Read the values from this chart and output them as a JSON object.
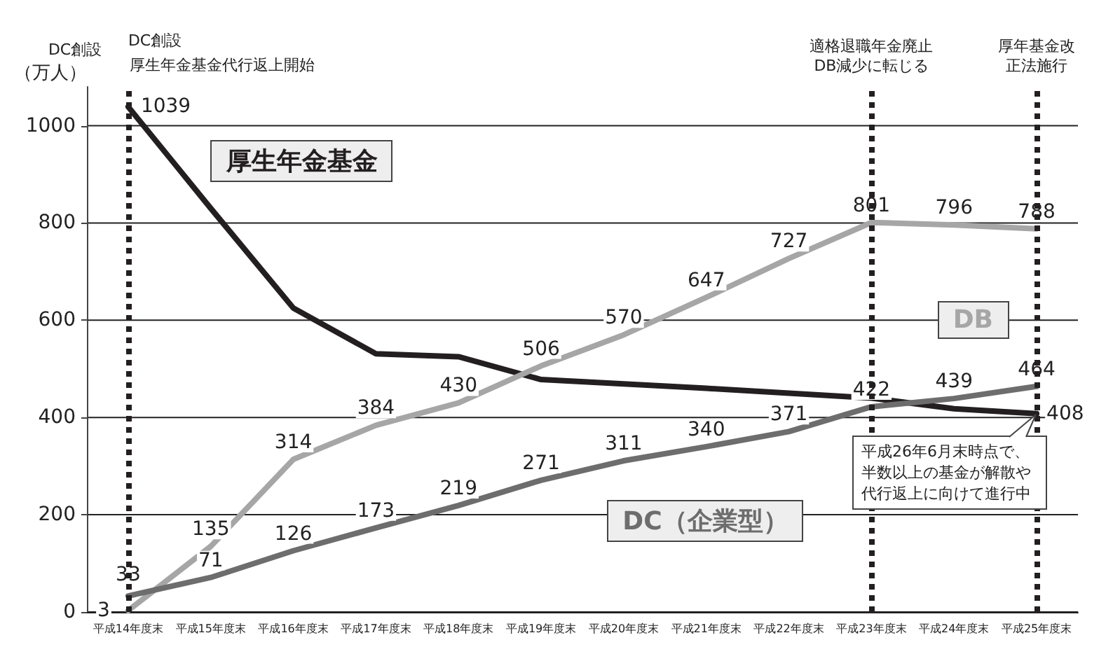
{
  "chart_data": {
    "type": "line",
    "ylabel": "（万人）",
    "categories": [
      "平成14年度末",
      "平成15年度末",
      "平成16年度末",
      "平成17年度末",
      "平成18年度末",
      "平成19年度末",
      "平成20年度末",
      "平成21年度末",
      "平成22年度末",
      "平成23年度末",
      "平成24年度末",
      "平成25年度末"
    ],
    "series": [
      {
        "name": "厚生年金基金",
        "color": "#231f20",
        "values": [
          1039,
          830,
          625,
          531,
          525,
          478,
          469,
          460,
          450,
          440,
          418,
          408
        ],
        "value_labels": [
          "1039",
          null,
          null,
          null,
          null,
          null,
          null,
          null,
          null,
          null,
          null,
          "408"
        ]
      },
      {
        "name": "DB",
        "color": "#a6a6a6",
        "values": [
          3,
          135,
          314,
          384,
          430,
          506,
          570,
          647,
          727,
          801,
          796,
          788
        ],
        "value_labels": [
          "3",
          "135",
          "314",
          "384",
          "430",
          "506",
          "570",
          "647",
          "727",
          "801",
          "796",
          "788"
        ]
      },
      {
        "name": "DC（企業型）",
        "color": "#6d6d6d",
        "values": [
          33,
          71,
          126,
          173,
          219,
          271,
          311,
          340,
          371,
          422,
          439,
          464
        ],
        "value_labels": [
          "33",
          "71",
          "126",
          "173",
          "219",
          "271",
          "311",
          "340",
          "371",
          "422",
          "439",
          "464"
        ]
      }
    ],
    "ylim": [
      0,
      1080
    ],
    "yticks": [
      0,
      200,
      400,
      600,
      800,
      1000
    ],
    "grid": "y",
    "legend": false,
    "marker": "none",
    "line_style": "solid",
    "ref_lines": [
      {
        "axis": "x",
        "value": "平成14年度末",
        "label": "DC創設",
        "color": "#231f20",
        "line_style": "dotted"
      },
      {
        "axis": "x",
        "value": "平成23年度末",
        "label": "適格退職年金廃止DB減少に転じる",
        "color": "#231f20",
        "line_style": "dotted"
      },
      {
        "axis": "x",
        "value": "平成25年度末",
        "label": "厚年基金改正法施行",
        "color": "#231f20",
        "line_style": "dotted"
      }
    ],
    "annotations": [
      "DC創設",
      "厚生年金基金代行返上開始",
      {
        "text": "平成26年6月末時点で、半数以上の基金が解散や代行返上に向けて進行中",
        "x": "平成25年度末",
        "y": 408
      }
    ]
  }
}
